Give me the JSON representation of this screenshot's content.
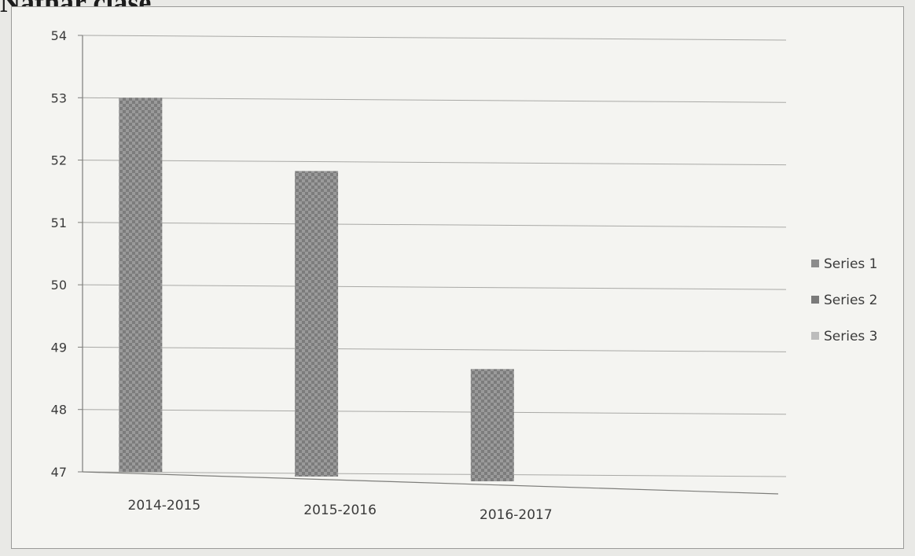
{
  "heading": "Nathar clase",
  "chart_data": {
    "type": "bar",
    "categories": [
      "2014-2015",
      "2015-2016",
      "2016-2017"
    ],
    "series": [
      {
        "name": "Series 1",
        "values": [
          53,
          51.9,
          48.8
        ]
      },
      {
        "name": "Series 2",
        "values": [
          null,
          null,
          null
        ]
      },
      {
        "name": "Series 3",
        "values": [
          null,
          null,
          null
        ]
      }
    ],
    "ylim": [
      47,
      54
    ],
    "yticks": [
      47,
      48,
      49,
      50,
      51,
      52,
      53,
      54
    ],
    "grid": true,
    "legend_position": "right",
    "colors": {
      "series_1": "#8c8c8c",
      "series_2": "#7a7a7a",
      "series_3": "#b4b4b4"
    }
  }
}
